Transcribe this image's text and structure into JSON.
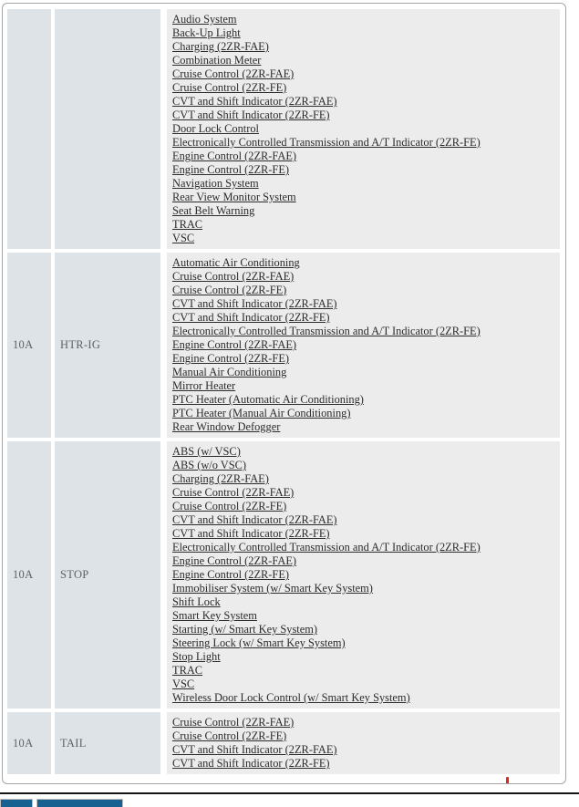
{
  "colors": {
    "cell-bg": "#dde3e7",
    "list-bg": "#ececec",
    "link-text": "#2b2b2b",
    "label-text": "#5d6265",
    "panel-border": "#a6a6a6",
    "divider": "#141414",
    "tab-blue": "#16618f",
    "tab-border": "#bcbcbc",
    "red-mark": "#e8231a"
  },
  "table": {
    "rows": [
      {
        "amp": "",
        "name": "",
        "links": [
          "Audio System",
          "Back-Up Light",
          "Charging (2ZR-FAE)",
          "Combination Meter",
          "Cruise Control (2ZR-FAE)",
          "Cruise Control (2ZR-FE)",
          "CVT and Shift Indicator (2ZR-FAE)",
          "CVT and Shift Indicator (2ZR-FE)",
          "Door Lock Control",
          "Electronically Controlled Transmission and A/T Indicator (2ZR-FE)",
          "Engine Control (2ZR-FAE)",
          "Engine Control (2ZR-FE)",
          "Navigation System",
          "Rear View Monitor System",
          "Seat Belt Warning",
          "TRAC",
          "VSC"
        ]
      },
      {
        "amp": "10A",
        "name": "HTR-IG",
        "links": [
          "Automatic Air Conditioning",
          "Cruise Control (2ZR-FAE)",
          "Cruise Control (2ZR-FE)",
          "CVT and Shift Indicator (2ZR-FAE)",
          "CVT and Shift Indicator (2ZR-FE)",
          "Electronically Controlled Transmission and A/T Indicator (2ZR-FE)",
          "Engine Control (2ZR-FAE)",
          "Engine Control (2ZR-FE)",
          "Manual Air Conditioning",
          "Mirror Heater",
          "PTC Heater (Automatic Air Conditioning)",
          "PTC Heater (Manual Air Conditioning)",
          "Rear Window Defogger"
        ]
      },
      {
        "amp": "10A",
        "name": "STOP",
        "links": [
          "ABS (w/ VSC)",
          "ABS (w/o VSC)",
          "Charging (2ZR-FAE)",
          "Cruise Control (2ZR-FAE)",
          "Cruise Control (2ZR-FE)",
          "CVT and Shift Indicator (2ZR-FAE)",
          "CVT and Shift Indicator (2ZR-FE)",
          "Electronically Controlled Transmission and A/T Indicator (2ZR-FE)",
          "Engine Control (2ZR-FAE)",
          "Engine Control (2ZR-FE)",
          "Immobiliser System (w/ Smart Key System)",
          "Shift Lock",
          "Smart Key System",
          "Starting (w/ Smart Key System)",
          "Steering Lock (w/ Smart Key System)",
          "Stop Light",
          "TRAC",
          "VSC",
          "Wireless Door Lock Control (w/ Smart Key System)"
        ]
      },
      {
        "amp": "10A",
        "name": "TAIL",
        "links": [
          "Cruise Control (2ZR-FAE)",
          "Cruise Control (2ZR-FE)",
          "CVT and Shift Indicator (2ZR-FAE)",
          "CVT and Shift Indicator (2ZR-FE)"
        ]
      }
    ]
  }
}
